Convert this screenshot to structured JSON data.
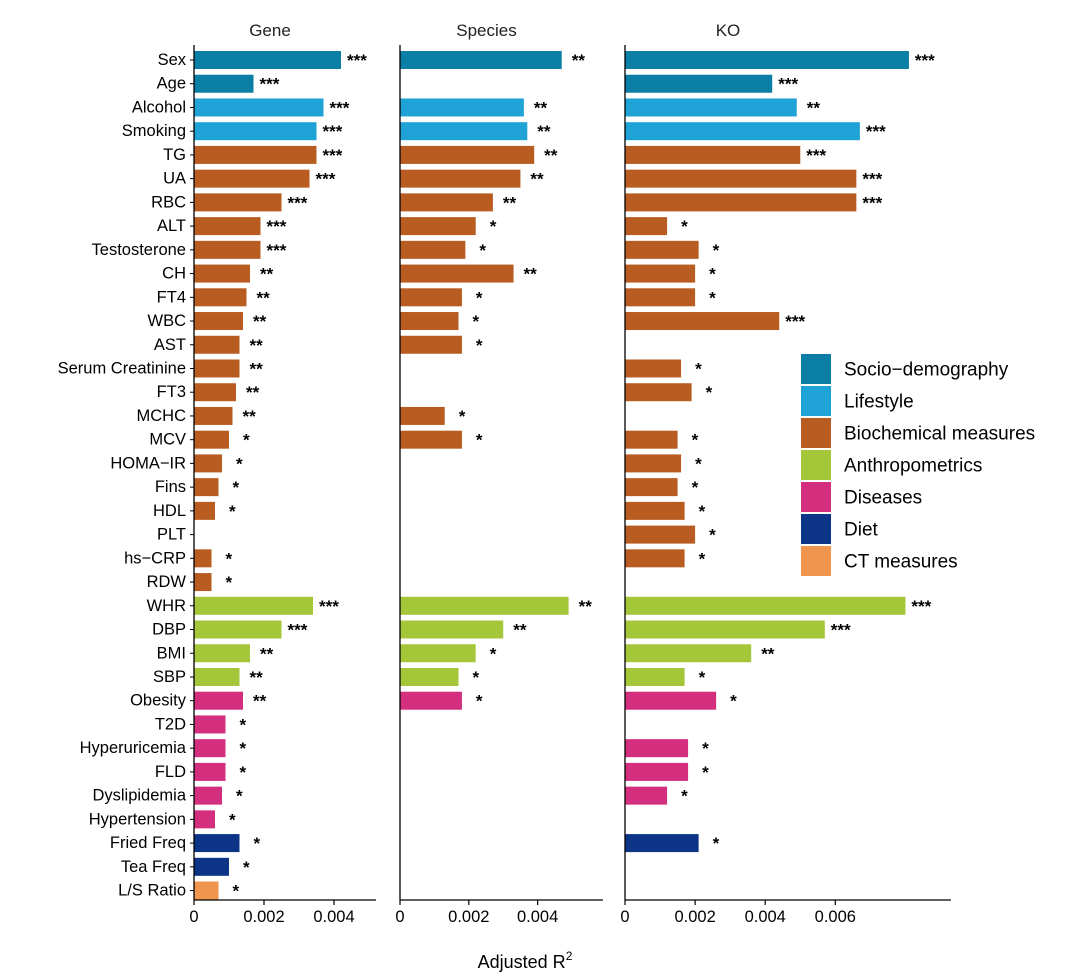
{
  "chart_data": {
    "type": "bar",
    "orientation": "horizontal",
    "xlabel": "Adjusted R",
    "xlabel_superscript": "2",
    "panels": [
      {
        "title": "Gene",
        "xlim": [
          0,
          0.0052
        ],
        "ticks": [
          0,
          0.002,
          0.004
        ],
        "tick_labels": [
          "0",
          "0.002",
          "0.004"
        ]
      },
      {
        "title": "Species",
        "xlim": [
          0,
          0.0059
        ],
        "ticks": [
          0,
          0.002,
          0.004
        ],
        "tick_labels": [
          "0",
          "0.002",
          "0.004"
        ]
      },
      {
        "title": "KO",
        "xlim": [
          0,
          0.0093
        ],
        "ticks": [
          0,
          0.002,
          0.004,
          0.006
        ],
        "tick_labels": [
          "0",
          "0.002",
          "0.004",
          "0.006"
        ]
      }
    ],
    "groups": [
      {
        "name": "Socio−demography",
        "color": "#0a7ea4"
      },
      {
        "name": "Lifestyle",
        "color": "#1fa2d6"
      },
      {
        "name": "Biochemical measures",
        "color": "#b85c22"
      },
      {
        "name": "Anthropometrics",
        "color": "#a4c639"
      },
      {
        "name": "Diseases",
        "color": "#d42e7e"
      },
      {
        "name": "Diet",
        "color": "#0c3487"
      },
      {
        "name": "CT measures",
        "color": "#f0954d"
      }
    ],
    "categories": [
      {
        "label": "Sex",
        "group": 0,
        "values": [
          0.0042,
          0.0047,
          0.0081
        ],
        "stars": [
          "***",
          "**",
          "***"
        ]
      },
      {
        "label": "Age",
        "group": 0,
        "values": [
          0.0017,
          null,
          0.0042
        ],
        "stars": [
          "***",
          null,
          "***"
        ]
      },
      {
        "label": "Alcohol",
        "group": 1,
        "values": [
          0.0037,
          0.0036,
          0.0049
        ],
        "stars": [
          "***",
          "**",
          "**"
        ]
      },
      {
        "label": "Smoking",
        "group": 1,
        "values": [
          0.0035,
          0.0037,
          0.0067
        ],
        "stars": [
          "***",
          "**",
          "***"
        ]
      },
      {
        "label": "TG",
        "group": 2,
        "values": [
          0.0035,
          0.0039,
          0.005
        ],
        "stars": [
          "***",
          "**",
          "***"
        ]
      },
      {
        "label": "UA",
        "group": 2,
        "values": [
          0.0033,
          0.0035,
          0.0066
        ],
        "stars": [
          "***",
          "**",
          "***"
        ]
      },
      {
        "label": "RBC",
        "group": 2,
        "values": [
          0.0025,
          0.0027,
          0.0066
        ],
        "stars": [
          "***",
          "**",
          "***"
        ]
      },
      {
        "label": "ALT",
        "group": 2,
        "values": [
          0.0019,
          0.0022,
          0.0012
        ],
        "stars": [
          "***",
          "*",
          "*"
        ]
      },
      {
        "label": "Testosterone",
        "group": 2,
        "values": [
          0.0019,
          0.0019,
          0.0021
        ],
        "stars": [
          "***",
          "*",
          "*"
        ]
      },
      {
        "label": "CH",
        "group": 2,
        "values": [
          0.0016,
          0.0033,
          0.002
        ],
        "stars": [
          "**",
          "**",
          "*"
        ]
      },
      {
        "label": "FT4",
        "group": 2,
        "values": [
          0.0015,
          0.0018,
          0.002
        ],
        "stars": [
          "**",
          "*",
          "*"
        ]
      },
      {
        "label": "WBC",
        "group": 2,
        "values": [
          0.0014,
          0.0017,
          0.0044
        ],
        "stars": [
          "**",
          "*",
          "***"
        ]
      },
      {
        "label": "AST",
        "group": 2,
        "values": [
          0.0013,
          0.0018,
          null
        ],
        "stars": [
          "**",
          "*",
          null
        ]
      },
      {
        "label": "Serum Creatinine",
        "group": 2,
        "values": [
          0.0013,
          null,
          0.0016
        ],
        "stars": [
          "**",
          null,
          "*"
        ]
      },
      {
        "label": "FT3",
        "group": 2,
        "values": [
          0.0012,
          null,
          0.0019
        ],
        "stars": [
          "**",
          null,
          "*"
        ]
      },
      {
        "label": "MCHC",
        "group": 2,
        "values": [
          0.0011,
          0.0013,
          null
        ],
        "stars": [
          "**",
          "*",
          null
        ]
      },
      {
        "label": "MCV",
        "group": 2,
        "values": [
          0.001,
          0.0018,
          0.0015
        ],
        "stars": [
          "*",
          "*",
          "*"
        ]
      },
      {
        "label": "HOMA−IR",
        "group": 2,
        "values": [
          0.0008,
          null,
          0.0016
        ],
        "stars": [
          "*",
          null,
          "*"
        ]
      },
      {
        "label": "Fins",
        "group": 2,
        "values": [
          0.0007,
          null,
          0.0015
        ],
        "stars": [
          "*",
          null,
          "*"
        ]
      },
      {
        "label": "HDL",
        "group": 2,
        "values": [
          0.0006,
          null,
          0.0017
        ],
        "stars": [
          "*",
          null,
          "*"
        ]
      },
      {
        "label": "PLT",
        "group": 2,
        "values": [
          null,
          null,
          0.002
        ],
        "stars": [
          null,
          null,
          "*"
        ]
      },
      {
        "label": "hs−CRP",
        "group": 2,
        "values": [
          0.0005,
          null,
          0.0017
        ],
        "stars": [
          "*",
          null,
          "*"
        ]
      },
      {
        "label": "RDW",
        "group": 2,
        "values": [
          0.0005,
          null,
          null
        ],
        "stars": [
          "*",
          null,
          null
        ]
      },
      {
        "label": "WHR",
        "group": 3,
        "values": [
          0.0034,
          0.0049,
          0.008
        ],
        "stars": [
          "***",
          "**",
          "***"
        ]
      },
      {
        "label": "DBP",
        "group": 3,
        "values": [
          0.0025,
          0.003,
          0.0057
        ],
        "stars": [
          "***",
          "**",
          "***"
        ]
      },
      {
        "label": "BMI",
        "group": 3,
        "values": [
          0.0016,
          0.0022,
          0.0036
        ],
        "stars": [
          "**",
          "*",
          "**"
        ]
      },
      {
        "label": "SBP",
        "group": 3,
        "values": [
          0.0013,
          0.0017,
          0.0017
        ],
        "stars": [
          "**",
          "*",
          "*"
        ]
      },
      {
        "label": "Obesity",
        "group": 4,
        "values": [
          0.0014,
          0.0018,
          0.0026
        ],
        "stars": [
          "**",
          "*",
          "*"
        ]
      },
      {
        "label": "T2D",
        "group": 4,
        "values": [
          0.0009,
          null,
          null
        ],
        "stars": [
          "*",
          null,
          null
        ]
      },
      {
        "label": "Hyperuricemia",
        "group": 4,
        "values": [
          0.0009,
          null,
          0.0018
        ],
        "stars": [
          "*",
          null,
          "*"
        ]
      },
      {
        "label": "FLD",
        "group": 4,
        "values": [
          0.0009,
          null,
          0.0018
        ],
        "stars": [
          "*",
          null,
          "*"
        ]
      },
      {
        "label": "Dyslipidemia",
        "group": 4,
        "values": [
          0.0008,
          null,
          0.0012
        ],
        "stars": [
          "*",
          null,
          "*"
        ]
      },
      {
        "label": "Hypertension",
        "group": 4,
        "values": [
          0.0006,
          null,
          null
        ],
        "stars": [
          "*",
          null,
          null
        ]
      },
      {
        "label": "Fried Freq",
        "group": 5,
        "values": [
          0.0013,
          null,
          0.0021
        ],
        "stars": [
          "*",
          null,
          "*"
        ]
      },
      {
        "label": "Tea Freq",
        "group": 5,
        "values": [
          0.001,
          null,
          null
        ],
        "stars": [
          "*",
          null,
          null
        ]
      },
      {
        "label": "L/S Ratio",
        "group": 6,
        "values": [
          0.0007,
          null,
          null
        ],
        "stars": [
          "*",
          null,
          null
        ]
      }
    ]
  }
}
